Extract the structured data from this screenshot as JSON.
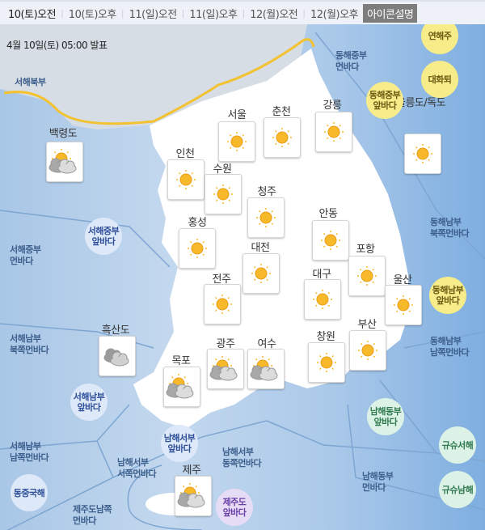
{
  "tabs": [
    {
      "label": "10(토)오전",
      "active": true
    },
    {
      "label": "10(토)오후"
    },
    {
      "label": "11(일)오전"
    },
    {
      "label": "11(일)오후"
    },
    {
      "label": "12(월)오전"
    },
    {
      "label": "12(월)오후"
    }
  ],
  "legend_button": "아이콘설명",
  "issued": "4월 10일(토) 05:00 발표",
  "colors": {
    "yellow": "#f6ec8a",
    "blue": "#dde9f8",
    "green": "#dcf2e6",
    "purple": "#e6dcf6",
    "sun": "#f7b92a",
    "cloud": "#bfbfbf",
    "front": "#f2c230"
  },
  "cities": [
    {
      "name": "백령도",
      "weather": "partly-cloudy"
    },
    {
      "name": "서울",
      "weather": "sunny"
    },
    {
      "name": "춘천",
      "weather": "sunny"
    },
    {
      "name": "강릉",
      "weather": "sunny"
    },
    {
      "name": "울릉도/독도",
      "weather": "sunny"
    },
    {
      "name": "인천",
      "weather": "sunny"
    },
    {
      "name": "수원",
      "weather": "sunny"
    },
    {
      "name": "청주",
      "weather": "sunny"
    },
    {
      "name": "안동",
      "weather": "sunny"
    },
    {
      "name": "홍성",
      "weather": "sunny"
    },
    {
      "name": "대전",
      "weather": "sunny"
    },
    {
      "name": "포항",
      "weather": "sunny"
    },
    {
      "name": "대구",
      "weather": "sunny"
    },
    {
      "name": "울산",
      "weather": "sunny"
    },
    {
      "name": "전주",
      "weather": "sunny"
    },
    {
      "name": "흑산도",
      "weather": "cloudy"
    },
    {
      "name": "부산",
      "weather": "sunny"
    },
    {
      "name": "창원",
      "weather": "sunny"
    },
    {
      "name": "광주",
      "weather": "partly-cloudy"
    },
    {
      "name": "여수",
      "weather": "partly-cloudy"
    },
    {
      "name": "목포",
      "weather": "partly-cloudy"
    },
    {
      "name": "제주",
      "weather": "partly-cloudy"
    }
  ],
  "sea_areas": [
    "서해북부",
    "동해중부\n먼바다",
    "서해중부\n먼바다",
    "동해남부\n북쪽먼바다",
    "서해남부\n북쪽먼바다",
    "동해남부\n남쪽먼바다",
    "서해남부\n남쪽먼바다",
    "남해서부\n서쪽먼바다",
    "남해서부\n동쪽먼바다",
    "남해동부\n먼바다",
    "제주도남쪽\n먼바다"
  ],
  "sea_badges": [
    {
      "label": "연해주",
      "color": "yellow"
    },
    {
      "label": "대화퇴",
      "color": "yellow"
    },
    {
      "label": "동해중부\n앞바다",
      "color": "yellow"
    },
    {
      "label": "서해중부\n앞바다",
      "color": "blue"
    },
    {
      "label": "동해남부\n앞바다",
      "color": "yellow"
    },
    {
      "label": "서해남부\n앞바다",
      "color": "blue"
    },
    {
      "label": "남해동부\n앞바다",
      "color": "green"
    },
    {
      "label": "남해서부\n앞바다",
      "color": "blue"
    },
    {
      "label": "규슈서해",
      "color": "green"
    },
    {
      "label": "동중국해",
      "color": "blue"
    },
    {
      "label": "규슈남해",
      "color": "green"
    },
    {
      "label": "제주도\n앞바다",
      "color": "purple"
    }
  ]
}
